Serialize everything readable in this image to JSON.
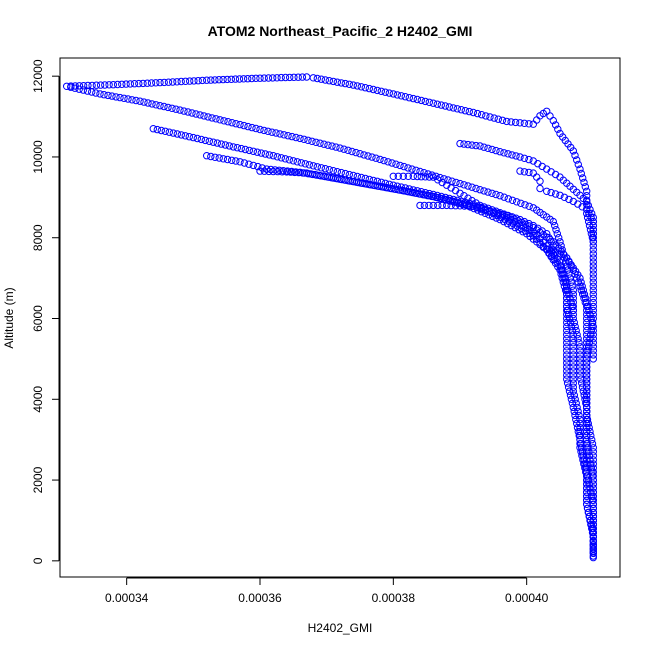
{
  "chart_data": {
    "type": "scatter",
    "title": "ATOM2 Northeast_Pacific_2 H2402_GMI",
    "xlabel": "H2402_GMI",
    "ylabel": "Altitude (m)",
    "xlim": [
      0.00033,
      0.000414
    ],
    "ylim": [
      -400,
      12450
    ],
    "x_ticks": [
      {
        "value": 0.00034,
        "label": "0.00034"
      },
      {
        "value": 0.00036,
        "label": "0.00036"
      },
      {
        "value": 0.00038,
        "label": "0.00038"
      },
      {
        "value": 0.0004,
        "label": "0.00040"
      }
    ],
    "y_ticks": [
      {
        "value": 0,
        "label": "0"
      },
      {
        "value": 2000,
        "label": "2000"
      },
      {
        "value": 4000,
        "label": "4000"
      },
      {
        "value": 6000,
        "label": "6000"
      },
      {
        "value": 8000,
        "label": "8000"
      },
      {
        "value": 10000,
        "label": "10000"
      },
      {
        "value": 12000,
        "label": "12000"
      }
    ],
    "marker": "open-circle",
    "marker_color": "#0000ff",
    "grid": false,
    "legend": "none",
    "series": [
      {
        "points": [
          [
            0.000367,
            11980
          ],
          [
            0.00036,
            11950
          ],
          [
            0.000352,
            11900
          ],
          [
            0.000345,
            11840
          ],
          [
            0.000338,
            11790
          ],
          [
            0.000331,
            11750
          ],
          [
            0.000336,
            11560
          ],
          [
            0.000342,
            11380
          ],
          [
            0.000348,
            11160
          ],
          [
            0.000354,
            10920
          ],
          [
            0.00036,
            10680
          ],
          [
            0.000366,
            10460
          ],
          [
            0.000372,
            10220
          ],
          [
            0.000378,
            9940
          ],
          [
            0.000384,
            9640
          ],
          [
            0.00039,
            9340
          ],
          [
            0.000396,
            9040
          ],
          [
            0.000401,
            8740
          ],
          [
            0.000404,
            8400
          ],
          [
            0.000405,
            7900
          ],
          [
            0.000406,
            7300
          ],
          [
            0.000407,
            6700
          ],
          [
            0.000407,
            6000
          ],
          [
            0.000408,
            5300
          ],
          [
            0.000408,
            4600
          ],
          [
            0.000409,
            3800
          ],
          [
            0.000409,
            3000
          ],
          [
            0.000409,
            2200
          ],
          [
            0.00041,
            1400
          ],
          [
            0.00041,
            700
          ],
          [
            0.00041,
            120
          ]
        ]
      },
      {
        "points": [
          [
            0.000368,
            11960
          ],
          [
            0.000374,
            11780
          ],
          [
            0.00038,
            11560
          ],
          [
            0.000386,
            11330
          ],
          [
            0.000392,
            11100
          ],
          [
            0.000397,
            10880
          ],
          [
            0.000401,
            10810
          ],
          [
            0.000402,
            11020
          ],
          [
            0.000403,
            11130
          ],
          [
            0.000404,
            10900
          ],
          [
            0.000405,
            10580
          ],
          [
            0.000407,
            10150
          ],
          [
            0.000408,
            9700
          ],
          [
            0.000409,
            9150
          ],
          [
            0.000409,
            8600
          ],
          [
            0.00041,
            7900
          ],
          [
            0.00041,
            7000
          ],
          [
            0.00041,
            6000
          ],
          [
            0.000409,
            5000
          ],
          [
            0.000409,
            4000
          ],
          [
            0.000409,
            3000
          ],
          [
            0.00041,
            2000
          ],
          [
            0.00041,
            1000
          ],
          [
            0.00041,
            200
          ]
        ]
      },
      {
        "points": [
          [
            0.000344,
            10700
          ],
          [
            0.00035,
            10480
          ],
          [
            0.000356,
            10250
          ],
          [
            0.000362,
            10030
          ],
          [
            0.000368,
            9780
          ],
          [
            0.000374,
            9540
          ],
          [
            0.00038,
            9300
          ],
          [
            0.000386,
            9070
          ],
          [
            0.000392,
            8830
          ],
          [
            0.000397,
            8500
          ],
          [
            0.000401,
            8150
          ],
          [
            0.000403,
            7800
          ],
          [
            0.000405,
            7400
          ],
          [
            0.000406,
            6900
          ],
          [
            0.000406,
            6300
          ],
          [
            0.000407,
            5600
          ],
          [
            0.000407,
            4900
          ],
          [
            0.000407,
            4200
          ],
          [
            0.000408,
            3500
          ],
          [
            0.000408,
            2800
          ],
          [
            0.000409,
            2100
          ],
          [
            0.000409,
            1400
          ],
          [
            0.00041,
            700
          ],
          [
            0.00041,
            80
          ]
        ]
      },
      {
        "points": [
          [
            0.000352,
            10030
          ],
          [
            0.000357,
            9880
          ],
          [
            0.000361,
            9700
          ],
          [
            0.000366,
            9620
          ],
          [
            0.000371,
            9480
          ],
          [
            0.000376,
            9330
          ],
          [
            0.000381,
            9180
          ],
          [
            0.000386,
            9020
          ],
          [
            0.000391,
            8800
          ],
          [
            0.000396,
            8450
          ],
          [
            0.0004,
            8100
          ],
          [
            0.000403,
            7700
          ],
          [
            0.000405,
            7200
          ],
          [
            0.000406,
            6600
          ],
          [
            0.000406,
            5900
          ],
          [
            0.000406,
            5200
          ],
          [
            0.000406,
            4500
          ],
          [
            0.000407,
            3800
          ],
          [
            0.000408,
            3000
          ],
          [
            0.000409,
            2200
          ],
          [
            0.000409,
            1400
          ],
          [
            0.00041,
            600
          ]
        ]
      },
      {
        "points": [
          [
            0.00036,
            9650
          ],
          [
            0.000364,
            9630
          ],
          [
            0.000367,
            9600
          ],
          [
            0.000372,
            9450
          ],
          [
            0.000377,
            9300
          ],
          [
            0.000382,
            9150
          ],
          [
            0.000387,
            8980
          ],
          [
            0.000392,
            8780
          ],
          [
            0.000397,
            8550
          ],
          [
            0.000401,
            8250
          ],
          [
            0.000404,
            7900
          ],
          [
            0.000406,
            7500
          ],
          [
            0.000408,
            7000
          ],
          [
            0.000409,
            6400
          ],
          [
            0.00041,
            5800
          ],
          [
            0.00041,
            5000
          ]
        ]
      },
      {
        "points": [
          [
            0.00038,
            9520
          ],
          [
            0.000383,
            9520
          ],
          [
            0.000386,
            9500
          ],
          [
            0.000388,
            9300
          ],
          [
            0.00039,
            9100
          ],
          [
            0.000393,
            8800
          ],
          [
            0.000396,
            8620
          ],
          [
            0.000399,
            8450
          ],
          [
            0.000401,
            8300
          ],
          [
            0.000403,
            8100
          ],
          [
            0.000404,
            7800
          ],
          [
            0.000404,
            7600
          ]
        ]
      },
      {
        "points": [
          [
            0.000384,
            8800
          ],
          [
            0.000388,
            8800
          ],
          [
            0.000392,
            8780
          ],
          [
            0.000395,
            8600
          ],
          [
            0.000398,
            8350
          ],
          [
            0.000401,
            8050
          ],
          [
            0.000403,
            7700
          ],
          [
            0.000405,
            7300
          ],
          [
            0.000406,
            6800
          ],
          [
            0.000407,
            6200
          ]
        ]
      },
      {
        "points": [
          [
            0.00039,
            10330
          ],
          [
            0.000393,
            10270
          ],
          [
            0.000396,
            10130
          ],
          [
            0.000399,
            10000
          ],
          [
            0.000401,
            9900
          ],
          [
            0.000403,
            9700
          ],
          [
            0.000405,
            9500
          ],
          [
            0.000407,
            9200
          ],
          [
            0.000409,
            8900
          ],
          [
            0.00041,
            8500
          ],
          [
            0.00041,
            7900
          ]
        ]
      },
      {
        "points": [
          [
            0.000399,
            9650
          ],
          [
            0.000401,
            9600
          ],
          [
            0.000402,
            9400
          ],
          [
            0.000402,
            9220
          ],
          [
            0.000403,
            9150
          ],
          [
            0.000405,
            9050
          ],
          [
            0.000407,
            8900
          ],
          [
            0.000409,
            8700
          ],
          [
            0.00041,
            8400
          ],
          [
            0.00041,
            8000
          ]
        ]
      },
      {
        "points": [
          [
            0.000403,
            7720
          ],
          [
            0.000405,
            7600
          ],
          [
            0.000406,
            7500
          ],
          [
            0.000407,
            7200
          ],
          [
            0.000408,
            6800
          ],
          [
            0.000409,
            6300
          ],
          [
            0.000409,
            5700
          ],
          [
            0.000409,
            5000
          ],
          [
            0.000409,
            4300
          ],
          [
            0.000409,
            3600
          ],
          [
            0.00041,
            2800
          ],
          [
            0.00041,
            2000
          ],
          [
            0.00041,
            1200
          ],
          [
            0.00041,
            400
          ]
        ]
      }
    ]
  }
}
